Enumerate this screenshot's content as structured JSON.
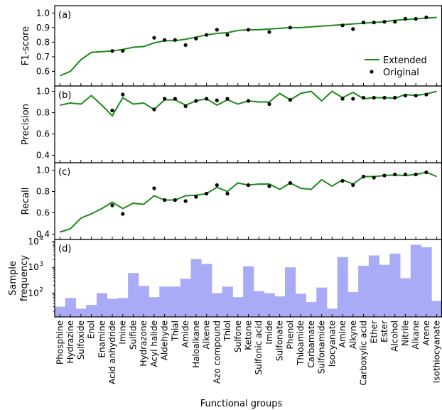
{
  "chart_data": {
    "type": "multi-panel",
    "xlabel": "Functional groups",
    "categories": [
      "Phosphine",
      "Hydrazine",
      "Sulfoxide",
      "Enol",
      "Enamine",
      "Acid anhydride",
      "Imine",
      "Sulfide",
      "Hydrazone",
      "Acyl halide",
      "Aldehyde",
      "Thial",
      "Amide",
      "Haloalkane",
      "Alkene",
      "Azo compound",
      "Thiol",
      "Sulfone",
      "Ketone",
      "Sulfonic acid",
      "Imide",
      "Sulfonate",
      "Phenol",
      "Thioamide",
      "Carbamate",
      "Sulfonamide",
      "Isocyanate",
      "Amine",
      "Alkyne",
      "Carboxylic acid",
      "Ether",
      "Ester",
      "Alcohol",
      "Nitrile",
      "Alkane",
      "Arene",
      "Isothiocyanate"
    ],
    "legend": {
      "extended": "Extended",
      "original": "Original",
      "position": "right"
    },
    "colors": {
      "extended": "#1a8c1a",
      "original": "#000000",
      "bar": "#a9abf7",
      "bar_edge": "#9c9ef2"
    },
    "panels": [
      {
        "tag": "(a)",
        "ylabel": "F1-score",
        "ylim": [
          0.5,
          1.05
        ],
        "yticks": [
          0.6,
          0.7,
          0.8,
          0.9,
          1.0
        ],
        "ytick_labels": [
          "0.6",
          "0.7",
          "0.8",
          "0.9",
          "1.0"
        ],
        "legend": true,
        "series": [
          {
            "name": "Extended",
            "kind": "line",
            "values": [
              0.57,
              0.6,
              0.68,
              0.73,
              0.735,
              0.74,
              0.75,
              0.765,
              0.77,
              0.795,
              0.81,
              0.81,
              0.82,
              0.835,
              0.85,
              0.86,
              0.865,
              0.88,
              0.885,
              0.885,
              0.89,
              0.895,
              0.9,
              0.9,
              0.905,
              0.91,
              0.915,
              0.92,
              0.925,
              0.93,
              0.935,
              0.94,
              0.95,
              0.955,
              0.96,
              0.965,
              0.97
            ]
          },
          {
            "name": "Original",
            "kind": "scatter",
            "values": [
              null,
              null,
              null,
              null,
              null,
              0.74,
              0.74,
              null,
              null,
              0.83,
              0.815,
              0.815,
              0.78,
              0.825,
              0.85,
              0.885,
              0.85,
              null,
              0.885,
              null,
              0.87,
              null,
              0.9,
              null,
              null,
              null,
              null,
              0.915,
              0.89,
              0.935,
              0.935,
              0.94,
              0.94,
              0.96,
              0.96,
              0.97,
              null
            ]
          }
        ]
      },
      {
        "tag": "(b)",
        "ylabel": "Precision",
        "ylim": [
          0.33,
          1.05
        ],
        "yticks": [
          0.4,
          0.6,
          0.8,
          1.0
        ],
        "ytick_labels": [
          "0.4",
          "0.6",
          "0.8",
          "1.0"
        ],
        "series": [
          {
            "name": "Extended",
            "kind": "line",
            "values": [
              0.87,
              0.89,
              0.88,
              0.96,
              0.87,
              0.77,
              0.94,
              0.88,
              0.89,
              0.83,
              0.92,
              0.92,
              0.87,
              0.91,
              0.93,
              0.87,
              0.92,
              0.88,
              0.91,
              0.9,
              0.9,
              0.98,
              0.92,
              0.98,
              1.0,
              0.91,
              1.0,
              0.94,
              0.99,
              0.93,
              0.94,
              0.94,
              0.935,
              0.97,
              0.96,
              0.975,
              1.0
            ]
          },
          {
            "name": "Original",
            "kind": "scatter",
            "values": [
              null,
              null,
              null,
              null,
              null,
              0.82,
              0.97,
              null,
              null,
              0.83,
              0.93,
              0.93,
              0.86,
              0.91,
              0.93,
              0.915,
              0.93,
              null,
              0.91,
              null,
              0.88,
              null,
              0.92,
              null,
              null,
              null,
              null,
              0.93,
              0.93,
              0.94,
              0.94,
              0.94,
              0.94,
              0.96,
              0.96,
              0.97,
              null
            ]
          }
        ]
      },
      {
        "tag": "(c)",
        "ylabel": "Recall",
        "ylim": [
          0.35,
          1.07
        ],
        "yticks": [
          0.4,
          0.6,
          0.8,
          1.0
        ],
        "ytick_labels": [
          "0.4",
          "0.6",
          "0.8",
          "1.0"
        ],
        "series": [
          {
            "name": "Extended",
            "kind": "line",
            "values": [
              0.42,
              0.45,
              0.55,
              0.59,
              0.64,
              0.7,
              0.64,
              0.69,
              0.68,
              0.76,
              0.72,
              0.72,
              0.76,
              0.765,
              0.78,
              0.84,
              0.8,
              0.88,
              0.86,
              0.87,
              0.87,
              0.82,
              0.88,
              0.83,
              0.82,
              0.91,
              0.85,
              0.91,
              0.87,
              0.94,
              0.94,
              0.95,
              0.955,
              0.95,
              0.96,
              0.98,
              0.94
            ]
          },
          {
            "name": "Original",
            "kind": "scatter",
            "values": [
              null,
              null,
              null,
              null,
              null,
              0.67,
              0.59,
              null,
              null,
              0.83,
              0.72,
              0.72,
              0.71,
              0.75,
              0.78,
              0.86,
              0.78,
              null,
              0.86,
              null,
              0.85,
              null,
              0.88,
              null,
              null,
              null,
              null,
              0.9,
              0.86,
              0.94,
              0.93,
              0.95,
              0.96,
              0.96,
              0.96,
              0.98,
              null
            ]
          }
        ]
      },
      {
        "tag": "(d)",
        "ylabel": "Sample frequency",
        "ylabel_lines": [
          "Sample",
          "frequency"
        ],
        "type": "bar",
        "log_scale": true,
        "ylim": [
          12,
          12000
        ],
        "yticks": [
          100,
          1000,
          10000
        ],
        "ytick_labels": [
          "10",
          "10",
          "10"
        ],
        "ytick_exponents": [
          "2",
          "3",
          "4"
        ],
        "values": [
          30,
          65,
          25,
          35,
          100,
          60,
          65,
          600,
          190,
          70,
          180,
          180,
          360,
          2100,
          1350,
          100,
          180,
          70,
          1100,
          120,
          100,
          75,
          1000,
          95,
          45,
          165,
          25,
          2500,
          110,
          1150,
          2900,
          1250,
          3400,
          380,
          7500,
          6000,
          50
        ]
      }
    ]
  }
}
